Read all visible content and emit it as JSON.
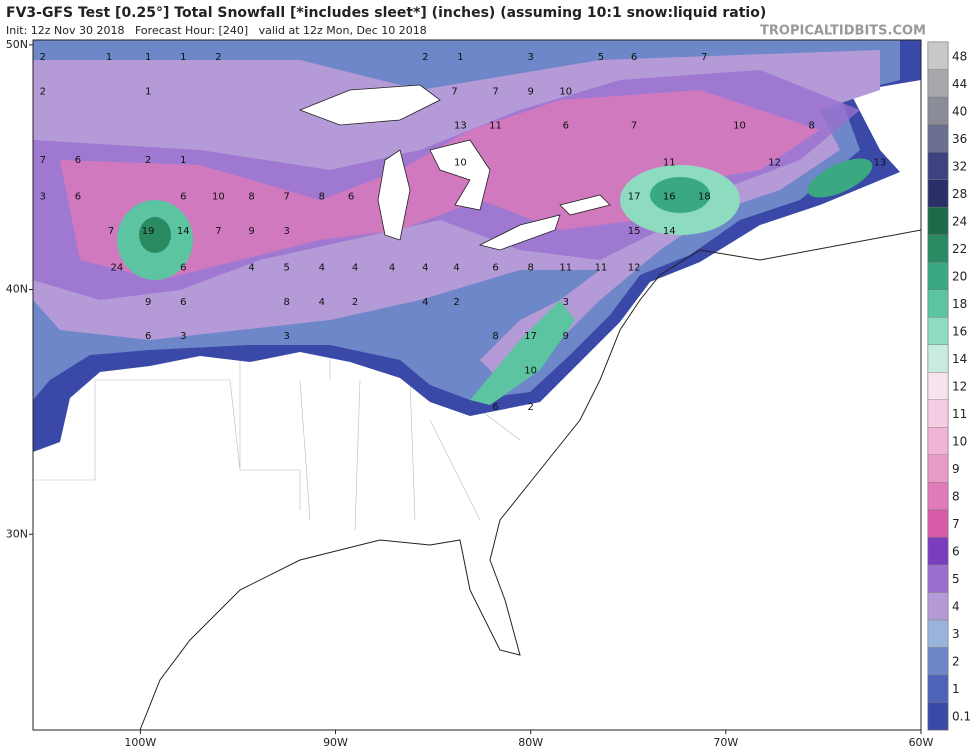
{
  "header": {
    "title": "FV3-GFS Test [0.25°] Total Snowfall [*includes sleet*] (inches) (assuming 10:1 snow:liquid ratio)",
    "subtitle": "Init: 12z Nov 30 2018   Forecast Hour: [240]   valid at 12z Mon, Dec 10 2018",
    "site": "TROPICALTIDBITS.COM"
  },
  "map": {
    "xlim": [
      -105.5,
      -60
    ],
    "ylim": [
      22,
      50.2
    ],
    "xticks": [
      {
        "value": -100,
        "label": "100W"
      },
      {
        "value": -90,
        "label": "90W"
      },
      {
        "value": -80,
        "label": "80W"
      },
      {
        "value": -70,
        "label": "70W"
      },
      {
        "value": -60,
        "label": "60W"
      }
    ],
    "yticks": [
      {
        "value": 30,
        "label": "30N"
      },
      {
        "value": 40,
        "label": "40N"
      },
      {
        "value": 50,
        "label": "50N"
      }
    ],
    "labels": [
      {
        "lon": -105,
        "lat": 49.5,
        "value": 2
      },
      {
        "lon": -101.6,
        "lat": 49.5,
        "value": 1
      },
      {
        "lon": -99.6,
        "lat": 49.5,
        "value": 1
      },
      {
        "lon": -97.8,
        "lat": 49.5,
        "value": 1
      },
      {
        "lon": -96,
        "lat": 49.5,
        "value": 2
      },
      {
        "lon": -85.4,
        "lat": 49.5,
        "value": 2
      },
      {
        "lon": -83.6,
        "lat": 49.5,
        "value": 1
      },
      {
        "lon": -80,
        "lat": 49.5,
        "value": 3
      },
      {
        "lon": -76.4,
        "lat": 49.5,
        "value": 5
      },
      {
        "lon": -74.7,
        "lat": 49.5,
        "value": 6
      },
      {
        "lon": -71.1,
        "lat": 49.5,
        "value": 7
      },
      {
        "lon": -105,
        "lat": 48.1,
        "value": 2
      },
      {
        "lon": -99.6,
        "lat": 48.1,
        "value": 1
      },
      {
        "lon": -83.9,
        "lat": 48.1,
        "value": 7
      },
      {
        "lon": -81.8,
        "lat": 48.1,
        "value": 7
      },
      {
        "lon": -80,
        "lat": 48.1,
        "value": 9
      },
      {
        "lon": -78.2,
        "lat": 48.1,
        "value": 10
      },
      {
        "lon": -83.6,
        "lat": 46.7,
        "value": 13
      },
      {
        "lon": -81.8,
        "lat": 46.7,
        "value": 11
      },
      {
        "lon": -78.2,
        "lat": 46.7,
        "value": 6
      },
      {
        "lon": -74.7,
        "lat": 46.7,
        "value": 7
      },
      {
        "lon": -69.3,
        "lat": 46.7,
        "value": 10
      },
      {
        "lon": -65.6,
        "lat": 46.7,
        "value": 8
      },
      {
        "lon": -105,
        "lat": 45.3,
        "value": 7
      },
      {
        "lon": -103.2,
        "lat": 45.3,
        "value": 6
      },
      {
        "lon": -99.6,
        "lat": 45.3,
        "value": 2
      },
      {
        "lon": -97.8,
        "lat": 45.3,
        "value": 1
      },
      {
        "lon": -83.6,
        "lat": 45.2,
        "value": 10
      },
      {
        "lon": -72.9,
        "lat": 45.2,
        "value": 11
      },
      {
        "lon": -67.5,
        "lat": 45.2,
        "value": 12
      },
      {
        "lon": -62.1,
        "lat": 45.2,
        "value": 13
      },
      {
        "lon": -105,
        "lat": 43.8,
        "value": 3
      },
      {
        "lon": -103.2,
        "lat": 43.8,
        "value": 6
      },
      {
        "lon": -97.8,
        "lat": 43.8,
        "value": 6
      },
      {
        "lon": -96,
        "lat": 43.8,
        "value": 10
      },
      {
        "lon": -94.3,
        "lat": 43.8,
        "value": 8
      },
      {
        "lon": -92.5,
        "lat": 43.8,
        "value": 7
      },
      {
        "lon": -90.7,
        "lat": 43.8,
        "value": 8
      },
      {
        "lon": -89.2,
        "lat": 43.8,
        "value": 6
      },
      {
        "lon": -74.7,
        "lat": 43.8,
        "value": 17
      },
      {
        "lon": -72.9,
        "lat": 43.8,
        "value": 16
      },
      {
        "lon": -71.1,
        "lat": 43.8,
        "value": 18
      },
      {
        "lon": -101.5,
        "lat": 42.4,
        "value": 7
      },
      {
        "lon": -99.6,
        "lat": 42.4,
        "value": 19
      },
      {
        "lon": -97.8,
        "lat": 42.4,
        "value": 14
      },
      {
        "lon": -96,
        "lat": 42.4,
        "value": 7
      },
      {
        "lon": -94.3,
        "lat": 42.4,
        "value": 9
      },
      {
        "lon": -92.5,
        "lat": 42.4,
        "value": 3
      },
      {
        "lon": -74.7,
        "lat": 42.4,
        "value": 15
      },
      {
        "lon": -72.9,
        "lat": 42.4,
        "value": 14
      },
      {
        "lon": -101.2,
        "lat": 40.9,
        "value": 24
      },
      {
        "lon": -97.8,
        "lat": 40.9,
        "value": 6
      },
      {
        "lon": -94.3,
        "lat": 40.9,
        "value": 4
      },
      {
        "lon": -92.5,
        "lat": 40.9,
        "value": 5
      },
      {
        "lon": -90.7,
        "lat": 40.9,
        "value": 4
      },
      {
        "lon": -89,
        "lat": 40.9,
        "value": 4
      },
      {
        "lon": -87.1,
        "lat": 40.9,
        "value": 4
      },
      {
        "lon": -85.4,
        "lat": 40.9,
        "value": 4
      },
      {
        "lon": -83.8,
        "lat": 40.9,
        "value": 4
      },
      {
        "lon": -81.8,
        "lat": 40.9,
        "value": 6
      },
      {
        "lon": -80,
        "lat": 40.9,
        "value": 8
      },
      {
        "lon": -78.2,
        "lat": 40.9,
        "value": 11
      },
      {
        "lon": -76.4,
        "lat": 40.9,
        "value": 11
      },
      {
        "lon": -74.7,
        "lat": 40.9,
        "value": 12
      },
      {
        "lon": -99.6,
        "lat": 39.5,
        "value": 9
      },
      {
        "lon": -97.8,
        "lat": 39.5,
        "value": 6
      },
      {
        "lon": -92.5,
        "lat": 39.5,
        "value": 8
      },
      {
        "lon": -90.7,
        "lat": 39.5,
        "value": 4
      },
      {
        "lon": -89,
        "lat": 39.5,
        "value": 2
      },
      {
        "lon": -85.4,
        "lat": 39.5,
        "value": 4
      },
      {
        "lon": -83.8,
        "lat": 39.5,
        "value": 2
      },
      {
        "lon": -78.2,
        "lat": 39.5,
        "value": 3
      },
      {
        "lon": -99.6,
        "lat": 38.1,
        "value": 6
      },
      {
        "lon": -97.8,
        "lat": 38.1,
        "value": 3
      },
      {
        "lon": -92.5,
        "lat": 38.1,
        "value": 3
      },
      {
        "lon": -81.8,
        "lat": 38.1,
        "value": 8
      },
      {
        "lon": -80,
        "lat": 38.1,
        "value": 17
      },
      {
        "lon": -78.2,
        "lat": 38.1,
        "value": 9
      },
      {
        "lon": -80,
        "lat": 36.7,
        "value": 10
      },
      {
        "lon": -81.8,
        "lat": 35.2,
        "value": 6
      },
      {
        "lon": -80,
        "lat": 35.2,
        "value": 2
      }
    ]
  },
  "colorbar": {
    "levels": [
      0.1,
      1,
      2,
      3,
      4,
      5,
      6,
      7,
      8,
      9,
      10,
      11,
      12,
      14,
      16,
      18,
      20,
      22,
      24,
      28,
      32,
      36,
      40,
      44,
      48
    ],
    "colors": [
      "#3a48a8",
      "#4d62b8",
      "#6d87c8",
      "#9ab3da",
      "#b59ad8",
      "#9a6fd0",
      "#7c3cc0",
      "#d85aa8",
      "#e07ab8",
      "#e89ac8",
      "#f0b4d6",
      "#f5cce2",
      "#f8e2ee",
      "#c8ece0",
      "#8edcc0",
      "#5cc4a0",
      "#3aa880",
      "#2a8a62",
      "#1d6a48",
      "#2a2f6a",
      "#3e4280",
      "#6a6e90",
      "#8a8c98",
      "#a8a8ac",
      "#c8c8c8"
    ]
  }
}
